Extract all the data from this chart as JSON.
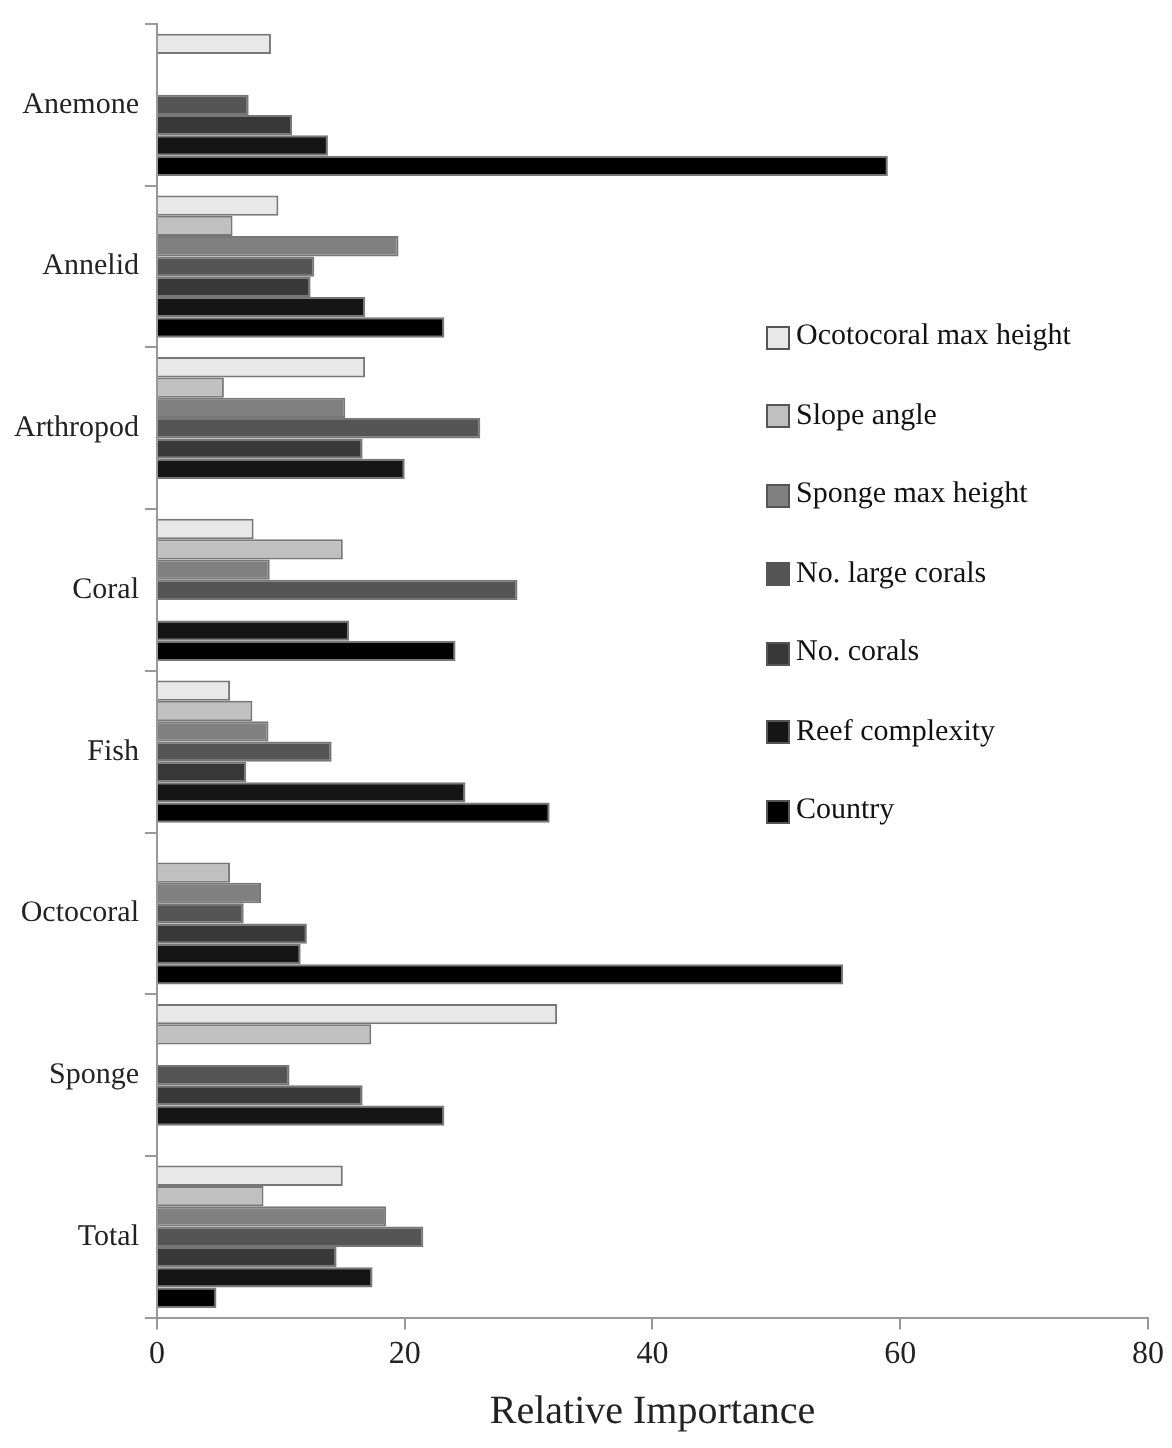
{
  "chart_data": {
    "type": "bar",
    "orientation": "horizontal",
    "xlabel": "Relative Importance",
    "categories": [
      "Anemone",
      "Annelid",
      "Arthropod",
      "Coral",
      "Fish",
      "Octocoral",
      "Sponge",
      "Total"
    ],
    "series": [
      {
        "name": "Ocotocoral max height",
        "color": "#e8e8e8",
        "values": [
          9.2,
          9.8,
          16.8,
          7.8,
          5.9,
          null,
          32.3,
          15.0
        ]
      },
      {
        "name": "Slope angle",
        "color": "#c0c0c0",
        "values": [
          null,
          6.1,
          5.4,
          15.0,
          7.7,
          5.9,
          17.3,
          8.6
        ]
      },
      {
        "name": "Sponge max height",
        "color": "#808080",
        "values": [
          null,
          19.5,
          15.2,
          9.1,
          9.0,
          8.4,
          null,
          18.5
        ]
      },
      {
        "name": "No. large corals",
        "color": "#555555",
        "values": [
          7.4,
          12.7,
          26.1,
          29.1,
          14.1,
          7.0,
          10.7,
          21.5
        ]
      },
      {
        "name": "No. corals",
        "color": "#383838",
        "values": [
          10.9,
          12.4,
          16.6,
          null,
          7.2,
          12.1,
          16.6,
          14.5
        ]
      },
      {
        "name": "Reef complexity",
        "color": "#151515",
        "values": [
          13.8,
          16.8,
          20.0,
          15.5,
          24.9,
          11.6,
          23.2,
          17.4
        ]
      },
      {
        "name": "Country",
        "color": "#000000",
        "values": [
          59.0,
          23.2,
          null,
          24.1,
          31.7,
          55.4,
          null,
          4.8
        ]
      }
    ],
    "xlim": [
      0,
      80
    ],
    "xticks": [
      0,
      20,
      40,
      60,
      80
    ],
    "grid": false,
    "legend": "right"
  }
}
